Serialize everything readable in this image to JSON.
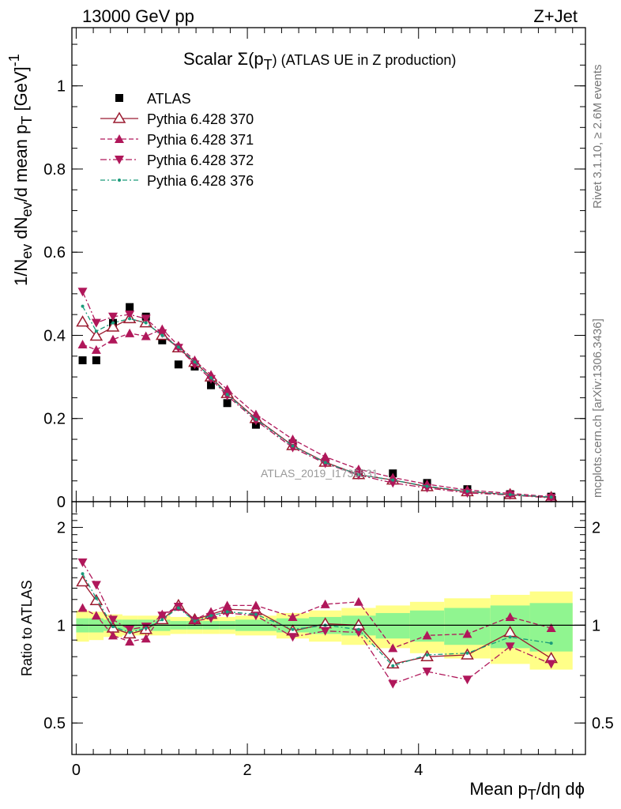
{
  "header": {
    "energy_label": "13000 GeV pp",
    "process_label": "Z+Jet"
  },
  "side_notes": {
    "rivet": "Rivet 3.1.10, ≥ 2.6M events",
    "mcplots": "mcplots.cern.ch [arXiv:1306.3436]"
  },
  "watermark": "ATLAS_2019_I1736531",
  "chart_data": [
    {
      "type": "scatter",
      "panel": "main",
      "title_main": "Scalar Σ(p",
      "title_sub": "T",
      "title_tail": ")  (ATLAS UE in Z production)",
      "ylabel": "1/N_ev dN_ev/d mean p_T [GeV]^-1",
      "xlabel": "",
      "xlim": [
        -0.05,
        5.95
      ],
      "ylim": [
        0,
        1.14
      ],
      "y_ticks": [
        0,
        0.2,
        0.4,
        0.6,
        0.8,
        1
      ],
      "y_tick_labels": [
        "0",
        "0.2",
        "0.4",
        "0.6",
        "0.8",
        "1"
      ],
      "x": [
        0.075,
        0.235,
        0.43,
        0.625,
        0.815,
        1.005,
        1.195,
        1.385,
        1.575,
        1.765,
        2.1,
        2.53,
        2.91,
        3.3,
        3.7,
        4.1,
        4.57,
        5.07,
        5.55
      ],
      "series": [
        {
          "name": "ATLAS",
          "style": "data",
          "color": "#000000",
          "values": [
            0.34,
            0.34,
            0.43,
            0.468,
            0.445,
            0.388,
            0.33,
            0.325,
            0.28,
            0.237,
            0.185,
            0.14,
            0.095,
            0.068,
            0.068,
            0.045,
            0.03,
            0.018,
            0.012
          ]
        },
        {
          "name": "Pythia 6.428 370",
          "style": "open-triangle-solid",
          "color": "#9b1b30",
          "values": [
            0.432,
            0.398,
            0.42,
            0.44,
            0.43,
            0.4,
            0.37,
            0.335,
            0.3,
            0.26,
            0.2,
            0.135,
            0.095,
            0.065,
            0.052,
            0.036,
            0.024,
            0.017,
            0.01
          ]
        },
        {
          "name": "Pythia 6.428 371",
          "style": "triangle-up-dashed",
          "color": "#b0175a",
          "values": [
            0.378,
            0.365,
            0.39,
            0.405,
            0.398,
            0.415,
            0.375,
            0.34,
            0.305,
            0.27,
            0.21,
            0.15,
            0.108,
            0.078,
            0.058,
            0.042,
            0.028,
            0.02,
            0.012
          ]
        },
        {
          "name": "Pythia 6.428 372",
          "style": "triangle-down-dashdot",
          "color": "#b0175a",
          "values": [
            0.505,
            0.43,
            0.445,
            0.45,
            0.44,
            0.405,
            0.37,
            0.33,
            0.295,
            0.255,
            0.195,
            0.13,
            0.092,
            0.064,
            0.045,
            0.033,
            0.021,
            0.016,
            0.009
          ]
        },
        {
          "name": "Pythia 6.428 376",
          "style": "dot-dashdot",
          "color": "#1a9a7a",
          "values": [
            0.47,
            0.41,
            0.43,
            0.44,
            0.43,
            0.4,
            0.372,
            0.336,
            0.298,
            0.258,
            0.198,
            0.134,
            0.094,
            0.065,
            0.052,
            0.037,
            0.025,
            0.017,
            0.011
          ]
        }
      ],
      "legend_position": "top-left"
    },
    {
      "type": "scatter",
      "panel": "ratio",
      "ylabel": "Ratio to ATLAS",
      "xlabel_main": "Mean p",
      "xlabel_sub": "T",
      "xlabel_tail": "/dη dϕ",
      "ylim": [
        0.4,
        2.4
      ],
      "y_log": true,
      "y_ticks": [
        0.5,
        1,
        2
      ],
      "y_tick_labels": [
        "0.5",
        "1",
        "2"
      ],
      "x_ticks": [
        0,
        2,
        4
      ],
      "x_tick_labels": [
        "0",
        "2",
        "4"
      ],
      "x_edges": [
        0,
        0.15,
        0.32,
        0.54,
        0.72,
        0.91,
        1.1,
        1.29,
        1.48,
        1.67,
        1.86,
        2.34,
        2.72,
        3.1,
        3.5,
        3.9,
        4.3,
        4.84,
        5.3,
        5.8
      ],
      "band_inner": [
        0.05,
        0.05,
        0.04,
        0.04,
        0.04,
        0.04,
        0.03,
        0.03,
        0.03,
        0.03,
        0.04,
        0.05,
        0.06,
        0.07,
        0.09,
        0.11,
        0.13,
        0.15,
        0.17
      ],
      "band_outer": [
        0.11,
        0.1,
        0.08,
        0.07,
        0.07,
        0.07,
        0.06,
        0.06,
        0.06,
        0.06,
        0.07,
        0.09,
        0.11,
        0.13,
        0.15,
        0.18,
        0.21,
        0.24,
        0.27
      ],
      "series": [
        {
          "name": "Pythia 6.428 370",
          "color": "#9b1b30",
          "values": [
            1.36,
            1.19,
            0.98,
            0.94,
            0.97,
            1.04,
            1.15,
            1.04,
            1.08,
            1.12,
            1.11,
            0.96,
            1.01,
            1.0,
            0.76,
            0.8,
            0.81,
            0.95,
            0.79
          ]
        },
        {
          "name": "Pythia 6.428 371",
          "color": "#b0175a",
          "values": [
            1.13,
            1.07,
            0.93,
            0.89,
            0.91,
            1.08,
            1.14,
            1.04,
            1.1,
            1.15,
            1.15,
            1.06,
            1.16,
            1.18,
            0.85,
            0.93,
            0.94,
            1.06,
            0.98
          ]
        },
        {
          "name": "Pythia 6.428 372",
          "color": "#b0175a",
          "values": [
            1.56,
            1.33,
            1.04,
            0.97,
            0.99,
            1.07,
            1.14,
            1.03,
            1.05,
            1.09,
            1.07,
            0.92,
            0.96,
            0.95,
            0.66,
            0.72,
            0.68,
            0.86,
            0.76
          ]
        },
        {
          "name": "Pythia 6.428 376",
          "color": "#1a9a7a",
          "values": [
            1.44,
            1.21,
            0.99,
            0.95,
            0.98,
            1.04,
            1.13,
            1.03,
            1.07,
            1.1,
            1.08,
            0.97,
            1.0,
            0.97,
            0.75,
            0.81,
            0.82,
            0.92,
            0.88
          ]
        }
      ]
    }
  ]
}
